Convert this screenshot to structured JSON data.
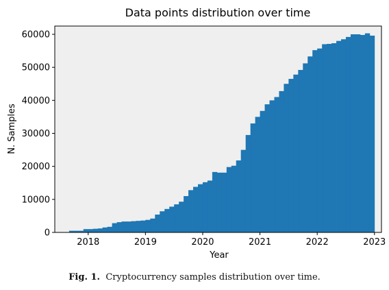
{
  "chart_data": {
    "type": "bar",
    "title": "Data points distribution over time",
    "xlabel": "Year",
    "ylabel": "N. Samples",
    "xlim": [
      "2017-06-01",
      "2023-02-15"
    ],
    "ylim": [
      0,
      62500
    ],
    "xticks": [
      "2018",
      "2019",
      "2020",
      "2021",
      "2022",
      "2023"
    ],
    "yticks": [
      "0",
      "10000",
      "20000",
      "30000",
      "40000",
      "50000",
      "60000"
    ],
    "grid": false,
    "color": "#1f77b4",
    "plot_background": "#efefef",
    "bin_width": "1 month",
    "x": [
      "2017-09",
      "2017-10",
      "2017-11",
      "2017-12",
      "2018-01",
      "2018-02",
      "2018-03",
      "2018-04",
      "2018-05",
      "2018-06",
      "2018-07",
      "2018-08",
      "2018-09",
      "2018-10",
      "2018-11",
      "2018-12",
      "2019-01",
      "2019-02",
      "2019-03",
      "2019-04",
      "2019-05",
      "2019-06",
      "2019-07",
      "2019-08",
      "2019-09",
      "2019-10",
      "2019-11",
      "2019-12",
      "2020-01",
      "2020-02",
      "2020-03",
      "2020-04",
      "2020-05",
      "2020-06",
      "2020-07",
      "2020-08",
      "2020-09",
      "2020-10",
      "2020-11",
      "2020-12",
      "2021-01",
      "2021-02",
      "2021-03",
      "2021-04",
      "2021-05",
      "2021-06",
      "2021-07",
      "2021-08",
      "2021-09",
      "2021-10",
      "2021-11",
      "2021-12",
      "2022-01",
      "2022-02",
      "2022-03",
      "2022-04",
      "2022-05",
      "2022-06",
      "2022-07",
      "2022-08",
      "2022-09",
      "2022-10",
      "2022-11",
      "2022-12"
    ],
    "values": [
      500,
      500,
      500,
      1000,
      1000,
      1100,
      1200,
      1500,
      1700,
      2800,
      3100,
      3300,
      3300,
      3400,
      3500,
      3600,
      3800,
      4200,
      5400,
      6400,
      7100,
      7800,
      8500,
      9300,
      11000,
      12800,
      13800,
      14600,
      15200,
      15700,
      18300,
      18100,
      18100,
      19800,
      20200,
      21800,
      25000,
      29500,
      33000,
      35000,
      36800,
      38800,
      40000,
      41000,
      42800,
      45000,
      46500,
      47800,
      49200,
      51200,
      53300,
      55200,
      55700,
      57000,
      57100,
      57300,
      58000,
      58500,
      59200,
      60000,
      60000,
      59800,
      60300,
      59600
    ]
  },
  "caption": {
    "label": "Fig. 1.",
    "text": "Cryptocurrency samples distribution over time."
  }
}
